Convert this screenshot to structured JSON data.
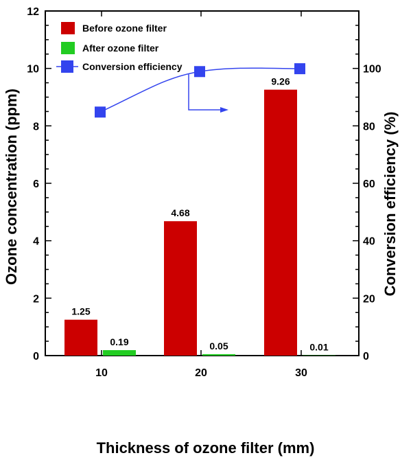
{
  "chart_data": {
    "type": "bar",
    "categories": [
      "10",
      "20",
      "30"
    ],
    "xlabel": "Thickness of ozone filter (mm)",
    "ylabel": "Ozone concentration (ppm)",
    "y2label": "Conversion efficiency (%)",
    "ylim": [
      0,
      12
    ],
    "y2lim": [
      0,
      120
    ],
    "yticks": [
      "0",
      "2",
      "4",
      "6",
      "8",
      "10",
      "12"
    ],
    "y2ticks": [
      "0",
      "20",
      "40",
      "60",
      "80",
      "100"
    ],
    "legend_position": "top-left",
    "series": [
      {
        "name": "Before ozone filter",
        "type": "bar",
        "axis": "left",
        "color": "#cc0000",
        "values": [
          1.25,
          4.68,
          9.26
        ],
        "labels": [
          "1.25",
          "4.68",
          "9.26"
        ]
      },
      {
        "name": "After ozone filter",
        "type": "bar",
        "axis": "left",
        "color": "#22cc22",
        "values": [
          0.19,
          0.05,
          0.01
        ],
        "labels": [
          "0.19",
          "0.05",
          "0.01"
        ]
      },
      {
        "name": "Conversion efficiency",
        "type": "line",
        "axis": "right",
        "color": "#3344ee",
        "values": [
          84.8,
          98.9,
          99.9
        ]
      }
    ]
  }
}
